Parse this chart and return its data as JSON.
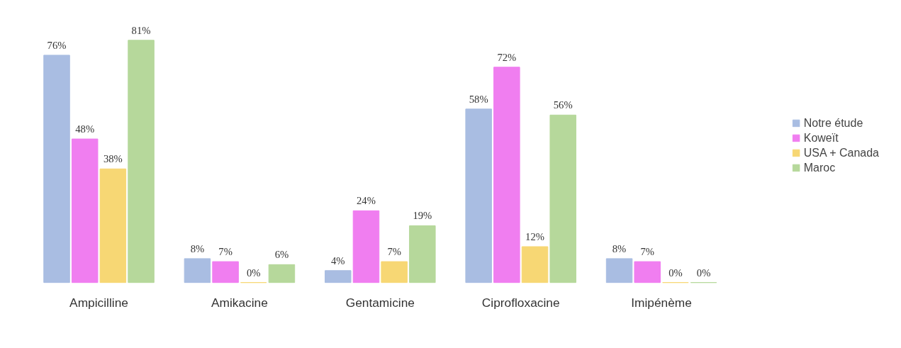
{
  "chart_data": {
    "type": "bar",
    "categories": [
      "Ampicilline",
      "Amikacine",
      "Gentamicine",
      "Ciprofloxacine",
      "Imipénème"
    ],
    "series": [
      {
        "name": "Notre étude",
        "color": "#a9bde2",
        "values": [
          76,
          8,
          4,
          58,
          8
        ],
        "value_labels": [
          "76%",
          "8%",
          "4%",
          "58%",
          "8%"
        ]
      },
      {
        "name": "Koweït",
        "color": "#f07ef0",
        "values": [
          48,
          7,
          24,
          72,
          7
        ],
        "value_labels": [
          "48%",
          "7%",
          "24%",
          "72%",
          "7%"
        ]
      },
      {
        "name": "USA + Canada",
        "color": "#f7d774",
        "values": [
          38,
          0,
          7,
          12,
          0
        ],
        "value_labels": [
          "38%",
          "0%",
          "7%",
          "12%",
          "0%"
        ]
      },
      {
        "name": "Maroc",
        "color": "#b6d89b",
        "values": [
          81,
          6,
          19,
          56,
          0
        ],
        "value_labels": [
          "81%",
          "6%",
          "19%",
          "56%",
          "0%"
        ]
      }
    ],
    "legend": "right",
    "tick_labels": "x",
    "grid": false
  }
}
